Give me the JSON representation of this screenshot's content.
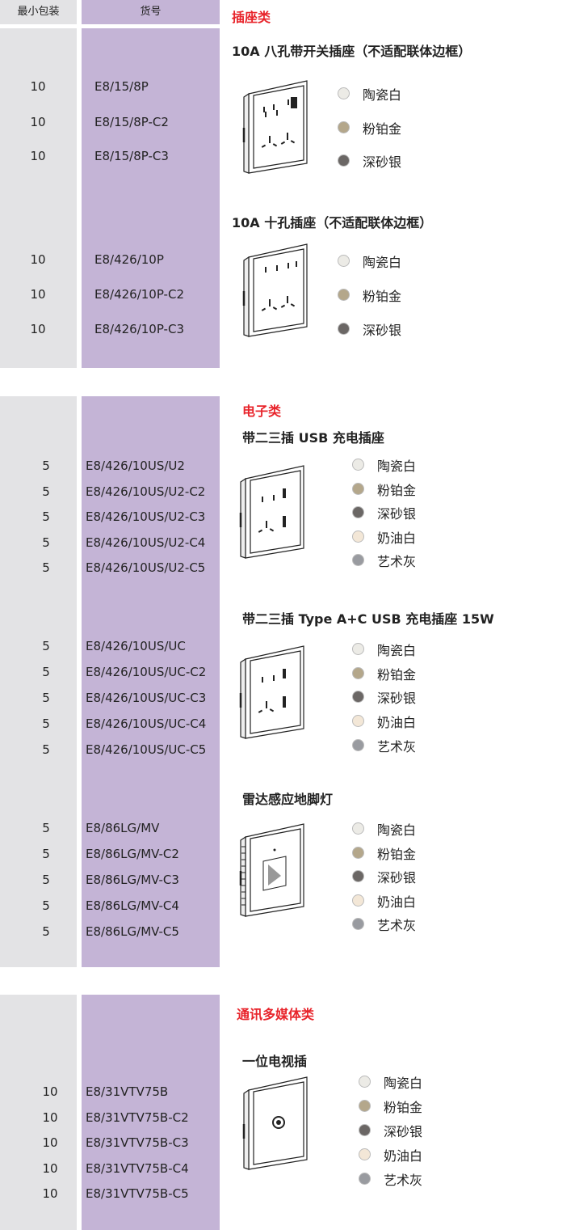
{
  "header": {
    "qty_label": "最小包装",
    "code_label": "货号"
  },
  "sections": [
    {
      "title": "插座类",
      "products": [
        {
          "name": "10A 八孔带开关插座（不适配联体边框）",
          "items": [
            {
              "qty": 10,
              "code": "E8/15/8P"
            },
            {
              "qty": 10,
              "code": "E8/15/8P-C2"
            },
            {
              "qty": 10,
              "code": "E8/15/8P-C3"
            }
          ],
          "colors": [
            {
              "name": "陶瓷白",
              "color": "#ecebe6"
            },
            {
              "name": "粉铂金",
              "color": "#b4a78b"
            },
            {
              "name": "深砂银",
              "color": "#6b6765"
            }
          ]
        },
        {
          "name": "10A 十孔插座（不适配联体边框）",
          "items": [
            {
              "qty": 10,
              "code": "E8/426/10P"
            },
            {
              "qty": 10,
              "code": "E8/426/10P-C2"
            },
            {
              "qty": 10,
              "code": "E8/426/10P-C3"
            }
          ],
          "colors": [
            {
              "name": "陶瓷白",
              "color": "#ecebe6"
            },
            {
              "name": "粉铂金",
              "color": "#b4a78b"
            },
            {
              "name": "深砂银",
              "color": "#6b6765"
            }
          ]
        }
      ]
    },
    {
      "title": "电子类",
      "products": [
        {
          "name": "带二三插 USB 充电插座",
          "items": [
            {
              "qty": 5,
              "code": "E8/426/10US/U2"
            },
            {
              "qty": 5,
              "code": "E8/426/10US/U2-C2"
            },
            {
              "qty": 5,
              "code": "E8/426/10US/U2-C3"
            },
            {
              "qty": 5,
              "code": "E8/426/10US/U2-C4"
            },
            {
              "qty": 5,
              "code": "E8/426/10US/U2-C5"
            }
          ],
          "colors": [
            {
              "name": "陶瓷白",
              "color": "#ecebe6"
            },
            {
              "name": "粉铂金",
              "color": "#b4a78b"
            },
            {
              "name": "深砂银",
              "color": "#6b6765"
            },
            {
              "name": "奶油白",
              "color": "#f3e7d7"
            },
            {
              "name": "艺术灰",
              "color": "#999ba0"
            }
          ]
        },
        {
          "name": "带二三插 Type A+C USB 充电插座 15W",
          "items": [
            {
              "qty": 5,
              "code": "E8/426/10US/UC"
            },
            {
              "qty": 5,
              "code": "E8/426/10US/UC-C2"
            },
            {
              "qty": 5,
              "code": "E8/426/10US/UC-C3"
            },
            {
              "qty": 5,
              "code": "E8/426/10US/UC-C4"
            },
            {
              "qty": 5,
              "code": "E8/426/10US/UC-C5"
            }
          ],
          "colors": [
            {
              "name": "陶瓷白",
              "color": "#ecebe6"
            },
            {
              "name": "粉铂金",
              "color": "#b4a78b"
            },
            {
              "name": "深砂银",
              "color": "#6b6765"
            },
            {
              "name": "奶油白",
              "color": "#f3e7d7"
            },
            {
              "name": "艺术灰",
              "color": "#999ba0"
            }
          ]
        },
        {
          "name": "雷达感应地脚灯",
          "items": [
            {
              "qty": 5,
              "code": "E8/86LG/MV"
            },
            {
              "qty": 5,
              "code": "E8/86LG/MV-C2"
            },
            {
              "qty": 5,
              "code": "E8/86LG/MV-C3"
            },
            {
              "qty": 5,
              "code": "E8/86LG/MV-C4"
            },
            {
              "qty": 5,
              "code": "E8/86LG/MV-C5"
            }
          ],
          "colors": [
            {
              "name": "陶瓷白",
              "color": "#ecebe6"
            },
            {
              "name": "粉铂金",
              "color": "#b4a78b"
            },
            {
              "name": "深砂银",
              "color": "#6b6765"
            },
            {
              "name": "奶油白",
              "color": "#f3e7d7"
            },
            {
              "name": "艺术灰",
              "color": "#999ba0"
            }
          ]
        }
      ]
    },
    {
      "title": "通讯多媒体类",
      "products": [
        {
          "name": "一位电视插",
          "items": [
            {
              "qty": 10,
              "code": "E8/31VTV75B"
            },
            {
              "qty": 10,
              "code": "E8/31VTV75B-C2"
            },
            {
              "qty": 10,
              "code": "E8/31VTV75B-C3"
            },
            {
              "qty": 10,
              "code": "E8/31VTV75B-C4"
            },
            {
              "qty": 10,
              "code": "E8/31VTV75B-C5"
            }
          ],
          "colors": [
            {
              "name": "陶瓷白",
              "color": "#ecebe6"
            },
            {
              "name": "粉铂金",
              "color": "#b4a78b"
            },
            {
              "name": "深砂银",
              "color": "#6b6765"
            },
            {
              "name": "奶油白",
              "color": "#f3e7d7"
            },
            {
              "name": "艺术灰",
              "color": "#999ba0"
            }
          ]
        }
      ]
    }
  ]
}
